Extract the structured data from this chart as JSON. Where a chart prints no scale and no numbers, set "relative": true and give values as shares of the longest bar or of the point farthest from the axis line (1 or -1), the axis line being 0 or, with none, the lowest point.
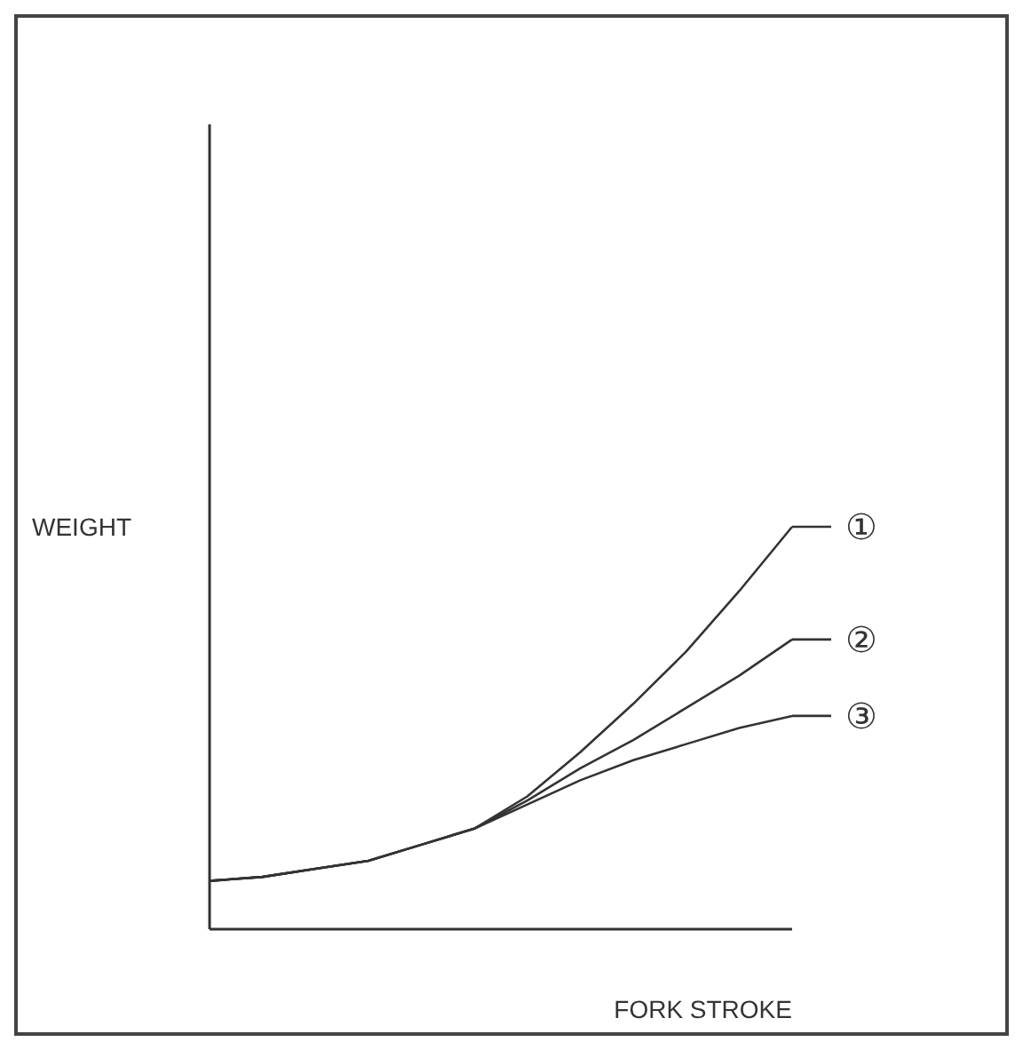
{
  "chart_data": {
    "type": "line",
    "relative": true,
    "xlabel": "FORK STROKE",
    "ylabel": "WEIGHT",
    "categories": [
      null,
      null,
      null,
      null,
      null,
      null,
      null,
      null,
      null,
      null,
      null,
      null
    ],
    "series": [
      {
        "name": "①",
        "color": "#333333",
        "values": [
          0.12,
          0.13,
          0.15,
          0.17,
          0.21,
          0.25,
          0.33,
          0.44,
          0.56,
          0.69,
          0.84,
          1
        ]
      },
      {
        "name": "②",
        "color": "#333333",
        "values": [
          0.12,
          0.13,
          0.15,
          0.17,
          0.21,
          0.25,
          0.32,
          0.4,
          0.47,
          0.55,
          0.63,
          0.72
        ]
      },
      {
        "name": "③",
        "color": "#333333",
        "values": [
          0.12,
          0.13,
          0.15,
          0.17,
          0.21,
          0.25,
          0.31,
          0.37,
          0.42,
          0.46,
          0.5,
          0.53
        ]
      }
    ],
    "grid": false,
    "legend": "right",
    "marker": "none",
    "line_style": "solid"
  }
}
